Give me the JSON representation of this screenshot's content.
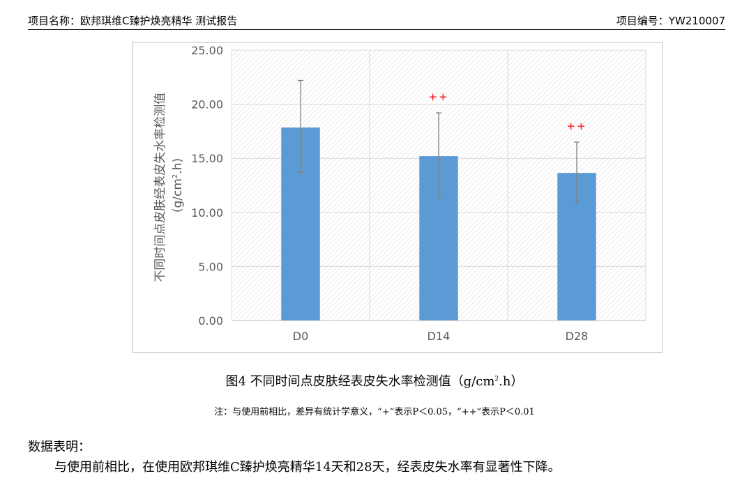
{
  "header": {
    "project_name": "项目名称：欧邦琪维C臻护焕亮精华 测试报告",
    "project_number": "项目编号：YW210007"
  },
  "chart_data": {
    "type": "bar",
    "categories": [
      "D0",
      "D14",
      "D28"
    ],
    "values": [
      17.85,
      15.2,
      13.65
    ],
    "error_low": [
      13.7,
      11.3,
      10.85
    ],
    "error_high": [
      22.2,
      19.2,
      16.5
    ],
    "significance": [
      "",
      "++",
      "++"
    ],
    "ylabel_line1": "不同时间点皮肤经表皮失水率检测值",
    "ylabel_unit_prefix": "(g/cm",
    "ylabel_unit_sup": "2",
    "ylabel_unit_suffix": ".h)",
    "ylim": [
      0,
      25
    ],
    "yticks": [
      "0.00",
      "5.00",
      "10.00",
      "15.00",
      "20.00",
      "25.00"
    ],
    "grid": true,
    "bar_color": "#5b9bd5",
    "error_color": "#808080",
    "significance_color": "#ff0000"
  },
  "caption": {
    "prefix": "图4 不同时间点皮肤经表皮失水率检测值（g/cm",
    "sup": "2",
    "suffix": ".h）"
  },
  "note": "注：与使用前相比，差异有统计学意义，“+”表示P＜0.05，“++”表示P＜0.01",
  "summary": {
    "title": "数据表明：",
    "body": "与使用前相比，在使用欧邦琪维C臻护焕亮精华14天和28天，经表皮失水率有显著性下降。"
  }
}
